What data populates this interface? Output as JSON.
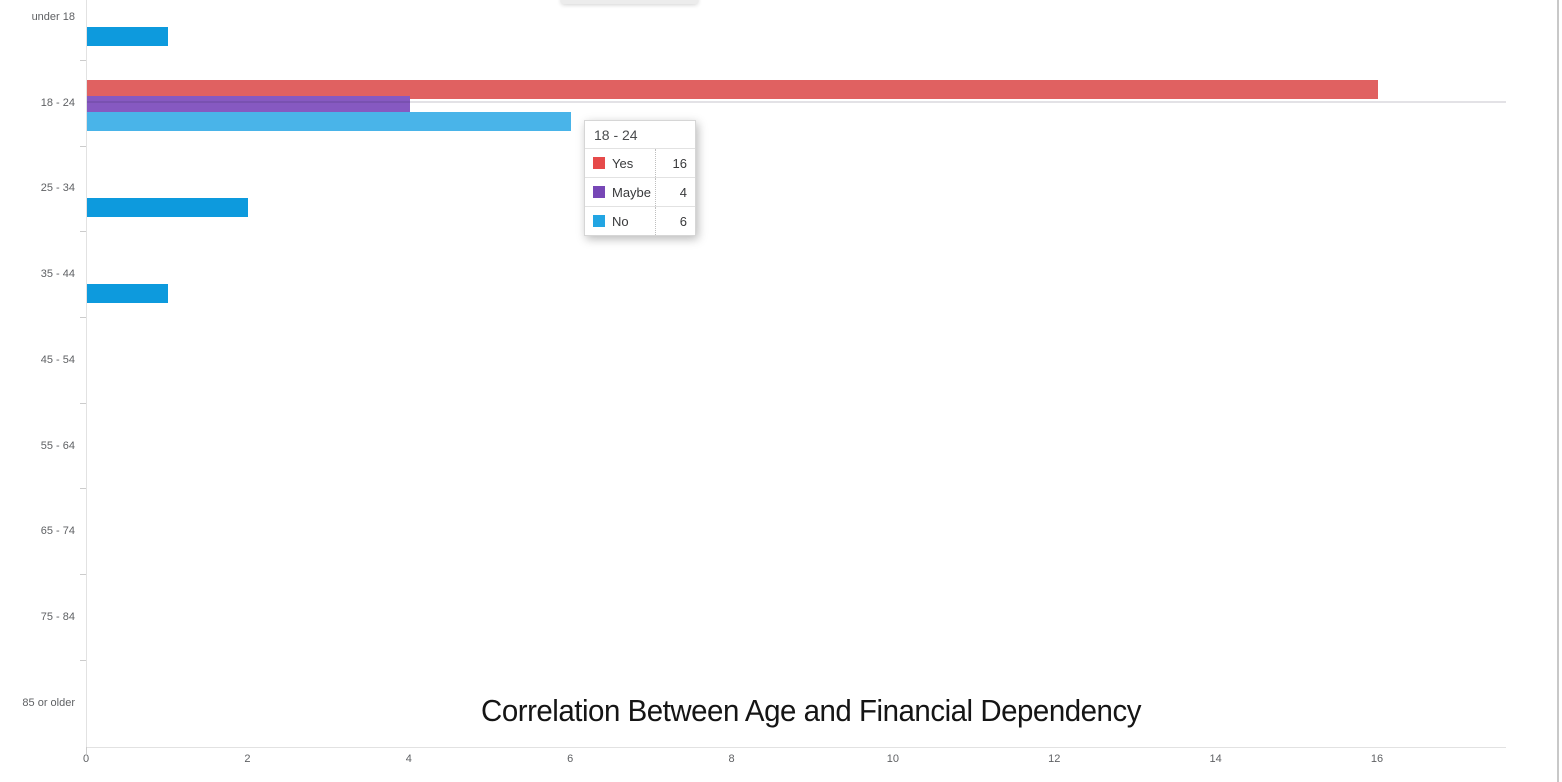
{
  "chart_data": {
    "type": "bar",
    "orientation": "horizontal",
    "title": "Correlation Between Age and Financial Dependency",
    "categories": [
      "under 18",
      "18 - 24",
      "25 - 34",
      "35 - 44",
      "45 - 54",
      "55 - 64",
      "65 - 74",
      "75 - 84",
      "85 or older"
    ],
    "series": [
      {
        "name": "Yes",
        "color": "#e64a4a",
        "hover_color": "#e06161",
        "values": [
          0,
          16,
          0,
          0,
          0,
          0,
          0,
          0,
          0
        ]
      },
      {
        "name": "Maybe",
        "color": "#7747b6",
        "hover_color": "#8659c1",
        "values": [
          0,
          4,
          0,
          0,
          0,
          0,
          0,
          0,
          0
        ]
      },
      {
        "name": "No",
        "color": "#0d9add",
        "hover_color": "#49b4e9",
        "values": [
          1,
          6,
          2,
          1,
          0,
          0,
          0,
          0,
          0
        ]
      }
    ],
    "x_tick_labels": [
      "0",
      "2",
      "4",
      "6",
      "8",
      "10",
      "12",
      "14",
      "16"
    ],
    "x_tick_values": [
      0,
      2,
      4,
      6,
      8,
      10,
      12,
      14,
      16
    ],
    "xlim": [
      0,
      17.6
    ],
    "ylabel": "",
    "xlabel": "",
    "grid": "hover guide line at hovered category only",
    "legend_position": "none (values shown in tooltip)",
    "hovered_category": "18 - 24"
  },
  "tooltip": {
    "header": "18 - 24",
    "rows": [
      {
        "label": "Yes",
        "value": "16",
        "color": "#e64a4a"
      },
      {
        "label": "Maybe",
        "value": "4",
        "color": "#7747b6"
      },
      {
        "label": "No",
        "value": "6",
        "color": "#22a5e3"
      }
    ]
  }
}
